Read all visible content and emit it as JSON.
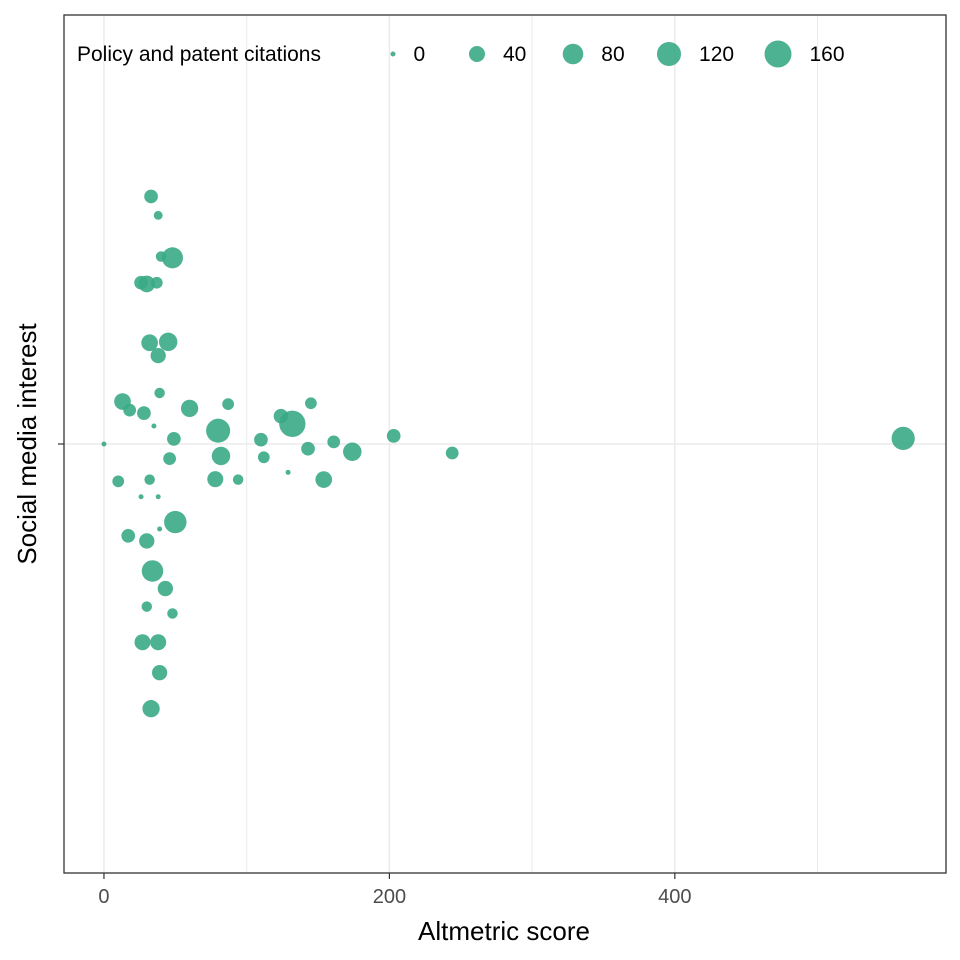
{
  "chart_data": {
    "type": "scatter",
    "title": "",
    "xlabel": "Altmetric score",
    "ylabel": "Social media interest",
    "xlim": [
      -28,
      590
    ],
    "ylim": [
      -1,
      1
    ],
    "xticks": [
      0,
      200,
      400
    ],
    "xtick_labels": [
      "0",
      "200",
      "400"
    ],
    "x_minor_grid": [
      100,
      300,
      500
    ],
    "y_gridline": 0,
    "y_axis": "no tick labels; points jittered vertically around the center line",
    "grid": true,
    "color": "#3aaa86",
    "point_opacity": 0.9,
    "legend": {
      "title": "Policy and patent citations",
      "placement": "top",
      "entries": [
        {
          "label": "0",
          "value": 0
        },
        {
          "label": "40",
          "value": 40
        },
        {
          "label": "80",
          "value": 80
        },
        {
          "label": "120",
          "value": 120
        },
        {
          "label": "160",
          "value": 160
        }
      ]
    },
    "size_domain": [
      0,
      160
    ],
    "points": [
      {
        "x": 0,
        "y": 0.0,
        "size": 0
      },
      {
        "x": 33,
        "y": 0.577,
        "size": 25
      },
      {
        "x": 38,
        "y": 0.533,
        "size": 5
      },
      {
        "x": 40,
        "y": 0.437,
        "size": 10
      },
      {
        "x": 48,
        "y": 0.434,
        "size": 85
      },
      {
        "x": 26,
        "y": 0.376,
        "size": 25
      },
      {
        "x": 30,
        "y": 0.373,
        "size": 45
      },
      {
        "x": 37,
        "y": 0.376,
        "size": 15
      },
      {
        "x": 32,
        "y": 0.236,
        "size": 45
      },
      {
        "x": 45,
        "y": 0.238,
        "size": 60
      },
      {
        "x": 38,
        "y": 0.206,
        "size": 35
      },
      {
        "x": 39,
        "y": 0.119,
        "size": 10
      },
      {
        "x": 13,
        "y": 0.099,
        "size": 45
      },
      {
        "x": 18,
        "y": 0.079,
        "size": 20
      },
      {
        "x": 28,
        "y": 0.072,
        "size": 25
      },
      {
        "x": 35,
        "y": 0.042,
        "size": 0
      },
      {
        "x": 60,
        "y": 0.083,
        "size": 50
      },
      {
        "x": 87,
        "y": 0.093,
        "size": 15
      },
      {
        "x": 80,
        "y": 0.031,
        "size": 120
      },
      {
        "x": 49,
        "y": 0.012,
        "size": 25
      },
      {
        "x": 124,
        "y": 0.065,
        "size": 30
      },
      {
        "x": 132,
        "y": 0.047,
        "size": 150
      },
      {
        "x": 145,
        "y": 0.095,
        "size": 15
      },
      {
        "x": 110,
        "y": 0.01,
        "size": 25
      },
      {
        "x": 161,
        "y": 0.005,
        "size": 20
      },
      {
        "x": 203,
        "y": 0.019,
        "size": 25
      },
      {
        "x": 143,
        "y": -0.011,
        "size": 25
      },
      {
        "x": 174,
        "y": -0.018,
        "size": 60
      },
      {
        "x": 560,
        "y": 0.013,
        "size": 110
      },
      {
        "x": 82,
        "y": -0.028,
        "size": 60
      },
      {
        "x": 46,
        "y": -0.034,
        "size": 20
      },
      {
        "x": 112,
        "y": -0.031,
        "size": 15
      },
      {
        "x": 244,
        "y": -0.021,
        "size": 20
      },
      {
        "x": 10,
        "y": -0.087,
        "size": 15
      },
      {
        "x": 32,
        "y": -0.083,
        "size": 10
      },
      {
        "x": 78,
        "y": -0.082,
        "size": 40
      },
      {
        "x": 94,
        "y": -0.083,
        "size": 10
      },
      {
        "x": 129,
        "y": -0.066,
        "size": 0
      },
      {
        "x": 154,
        "y": -0.083,
        "size": 45
      },
      {
        "x": 26,
        "y": -0.123,
        "size": 0
      },
      {
        "x": 38,
        "y": -0.123,
        "size": 0
      },
      {
        "x": 50,
        "y": -0.182,
        "size": 100
      },
      {
        "x": 39,
        "y": -0.198,
        "size": 0
      },
      {
        "x": 17,
        "y": -0.214,
        "size": 25
      },
      {
        "x": 30,
        "y": -0.226,
        "size": 35
      },
      {
        "x": 34,
        "y": -0.296,
        "size": 90
      },
      {
        "x": 43,
        "y": -0.337,
        "size": 35
      },
      {
        "x": 30,
        "y": -0.379,
        "size": 10
      },
      {
        "x": 48,
        "y": -0.395,
        "size": 10
      },
      {
        "x": 27,
        "y": -0.462,
        "size": 40
      },
      {
        "x": 38,
        "y": -0.462,
        "size": 40
      },
      {
        "x": 39,
        "y": -0.533,
        "size": 35
      },
      {
        "x": 33,
        "y": -0.617,
        "size": 50
      }
    ]
  }
}
